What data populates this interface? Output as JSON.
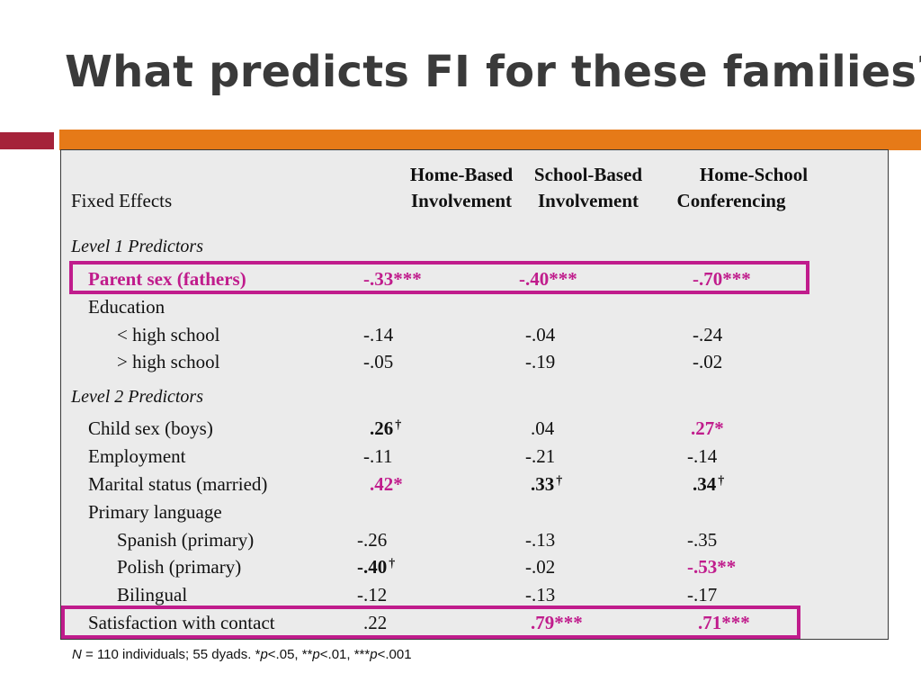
{
  "title": "What predicts FI for these families?",
  "colors": {
    "accent_red": "#a5233a",
    "accent_orange": "#e67a18",
    "highlight": "#c01c8c"
  },
  "table": {
    "fixed_effects_label": "Fixed Effects",
    "columns": [
      {
        "line1": "Home-Based",
        "line2": "Involvement"
      },
      {
        "line1": "School-Based",
        "line2": "Involvement"
      },
      {
        "line1": "Home-School",
        "line2": "Conferencing"
      }
    ],
    "level1_label": "Level 1 Predictors",
    "level2_label": "Level 2 Predictors",
    "rows": {
      "parent_sex": {
        "label": "Parent sex (fathers)",
        "values": [
          "-.33***",
          "-.40***",
          "-.70***"
        ]
      },
      "education": {
        "label": "Education"
      },
      "lt_hs": {
        "label": "< high school",
        "values": [
          "-.14",
          "-.04",
          "-.24"
        ]
      },
      "gt_hs": {
        "label": "> high school",
        "values": [
          "-.05",
          "-.19",
          "-.02"
        ]
      },
      "child_sex": {
        "label": "Child sex (boys)",
        "values": [
          ".26",
          ".04",
          ".27*"
        ]
      },
      "employment": {
        "label": "Employment",
        "values": [
          "-.11",
          "-.21",
          "-.14"
        ]
      },
      "marital": {
        "label": "Marital status (married)",
        "values": [
          ".42*",
          ".33",
          ".34"
        ]
      },
      "primary_language": {
        "label": "Primary language"
      },
      "spanish": {
        "label": "Spanish (primary)",
        "values": [
          "-.26",
          "-.13",
          "-.35"
        ]
      },
      "polish": {
        "label": "Polish (primary)",
        "values": [
          "-.40",
          "-.02",
          "-.53**"
        ]
      },
      "bilingual": {
        "label": "Bilingual",
        "values": [
          "-.12",
          "-.13",
          "-.17"
        ]
      },
      "satisfaction": {
        "label": "Satisfaction with contact",
        "values": [
          ".22",
          ".79***",
          ".71***"
        ]
      }
    },
    "dagger": "†"
  },
  "note": {
    "n": "N",
    "text1": " = 110 individuals; 55 dyads. *",
    "p": "p",
    "text2": "<.05, **",
    "text3": "<.01, ***",
    "text4": "<.001"
  }
}
